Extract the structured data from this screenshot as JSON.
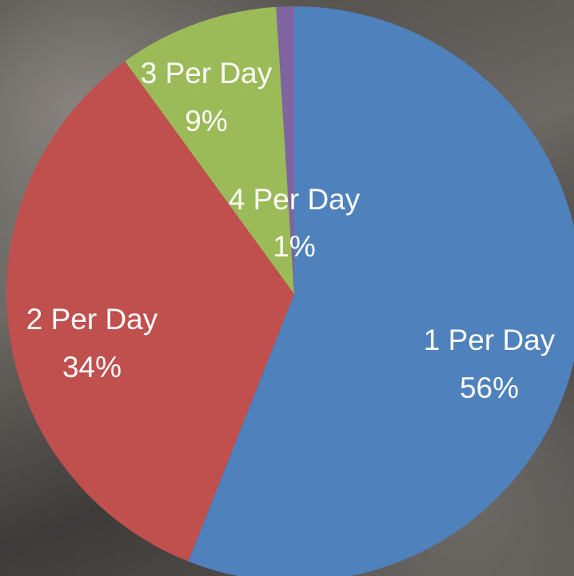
{
  "chart_data": {
    "type": "pie",
    "categories": [
      "1 Per Day",
      "2 Per Day",
      "3 Per Day",
      "4 Per Day"
    ],
    "values": [
      56,
      34,
      9,
      1
    ],
    "value_labels": [
      "56%",
      "34%",
      "9%",
      "1%"
    ],
    "colors": [
      "#4f81bd",
      "#c0504d",
      "#9bbb59",
      "#8064a2"
    ]
  }
}
